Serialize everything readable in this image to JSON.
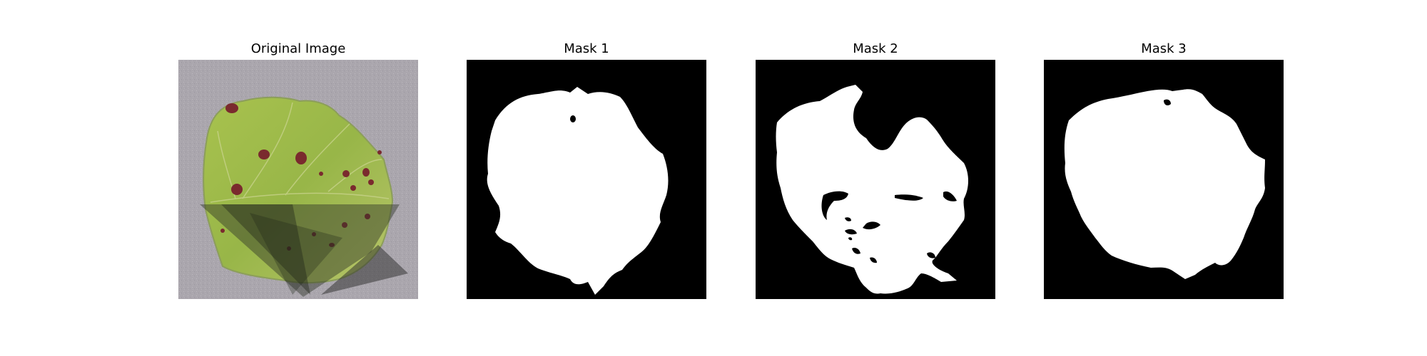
{
  "panels": [
    {
      "title": "Original Image",
      "kind": "photo",
      "icon": "leaf-photo"
    },
    {
      "title": "Mask 1",
      "kind": "mask",
      "icon": "segmentation-mask"
    },
    {
      "title": "Mask 2",
      "kind": "mask",
      "icon": "segmentation-mask"
    },
    {
      "title": "Mask 3",
      "kind": "mask",
      "icon": "segmentation-mask"
    }
  ],
  "colors": {
    "background": "#ffffff",
    "mask_foreground": "#ffffff",
    "mask_background": "#000000",
    "leaf_green": "#9dbb4a",
    "leaf_spot": "#7a2a2e",
    "surface_gray": "#aaa6ad"
  }
}
